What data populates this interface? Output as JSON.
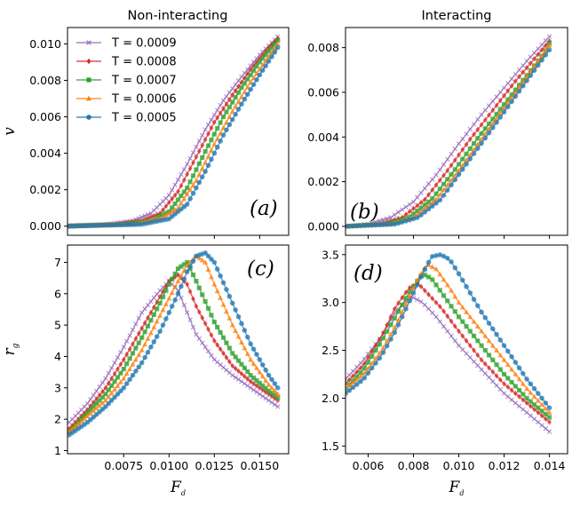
{
  "figure": {
    "shared_xlabel": "F",
    "shared_xlabel_sub": "d"
  },
  "legend": {
    "entries": [
      {
        "label": "T = 0.0009",
        "color": "#9467bd",
        "marker": "x"
      },
      {
        "label": "T = 0.0008",
        "color": "#d62728",
        "marker": "diamond"
      },
      {
        "label": "T = 0.0007",
        "color": "#2ca02c",
        "marker": "square"
      },
      {
        "label": "T = 0.0006",
        "color": "#ff7f0e",
        "marker": "triangle"
      },
      {
        "label": "T = 0.0005",
        "color": "#1f77b4",
        "marker": "circle"
      }
    ]
  },
  "chart_data": [
    {
      "id": "a",
      "type": "line",
      "title": "Non-interacting",
      "tag": "(a)",
      "ylabel": "v",
      "xlabel": "",
      "xlim": [
        0.0044,
        0.0166
      ],
      "ylim": [
        -0.0005,
        0.0109
      ],
      "xticks": [
        0.0075,
        0.01,
        0.0125,
        0.015
      ],
      "xtick_labels": [],
      "yticks": [
        0.0,
        0.002,
        0.004,
        0.006,
        0.008,
        0.01
      ],
      "ytick_labels": [
        "0.000",
        "0.002",
        "0.004",
        "0.006",
        "0.008",
        "0.010"
      ],
      "series": [
        {
          "name": "T = 0.0009",
          "x": [
            0.0045,
            0.0065,
            0.008,
            0.009,
            0.01,
            0.011,
            0.012,
            0.013,
            0.014,
            0.015,
            0.016
          ],
          "values": [
            5e-05,
            0.0001,
            0.0003,
            0.0007,
            0.0017,
            0.0034,
            0.0053,
            0.0069,
            0.0082,
            0.0094,
            0.0104
          ]
        },
        {
          "name": "T = 0.0008",
          "x": [
            0.0045,
            0.007,
            0.0085,
            0.0095,
            0.0105,
            0.0115,
            0.0125,
            0.0135,
            0.0145,
            0.0155,
            0.016
          ],
          "values": [
            0.0,
            0.0001,
            0.0003,
            0.0007,
            0.0019,
            0.0038,
            0.0057,
            0.0072,
            0.0086,
            0.0098,
            0.0103
          ]
        },
        {
          "name": "T = 0.0007",
          "x": [
            0.0045,
            0.0075,
            0.009,
            0.01,
            0.011,
            0.012,
            0.013,
            0.014,
            0.015,
            0.016
          ],
          "values": [
            0.0,
            0.0001,
            0.0003,
            0.0008,
            0.0021,
            0.0041,
            0.006,
            0.0076,
            0.009,
            0.0102
          ]
        },
        {
          "name": "T = 0.0006",
          "x": [
            0.0045,
            0.008,
            0.0095,
            0.0105,
            0.0115,
            0.0125,
            0.0135,
            0.0145,
            0.0155,
            0.016
          ],
          "values": [
            0.0,
            0.0001,
            0.0004,
            0.001,
            0.0025,
            0.0045,
            0.0063,
            0.0079,
            0.0093,
            0.01
          ]
        },
        {
          "name": "T = 0.0005",
          "x": [
            0.0045,
            0.0085,
            0.01,
            0.011,
            0.012,
            0.013,
            0.014,
            0.015,
            0.016
          ],
          "values": [
            0.0,
            0.0001,
            0.0004,
            0.0012,
            0.003,
            0.005,
            0.0067,
            0.0083,
            0.0098
          ]
        }
      ]
    },
    {
      "id": "b",
      "type": "line",
      "title": "Interacting",
      "tag": "(b)",
      "ylabel": "",
      "xlabel": "",
      "xlim": [
        0.005,
        0.0148
      ],
      "ylim": [
        -0.0004,
        0.0089
      ],
      "xticks": [
        0.006,
        0.008,
        0.01,
        0.012,
        0.014
      ],
      "xtick_labels": [],
      "yticks": [
        0.0,
        0.002,
        0.004,
        0.006,
        0.008
      ],
      "ytick_labels": [
        "0.000",
        "0.002",
        "0.004",
        "0.006",
        "0.008"
      ],
      "series": [
        {
          "name": "T = 0.0009",
          "x": [
            0.005,
            0.006,
            0.007,
            0.008,
            0.009,
            0.01,
            0.011,
            0.012,
            0.013,
            0.014
          ],
          "values": [
            0.0,
            0.0001,
            0.0004,
            0.0011,
            0.0023,
            0.0037,
            0.005,
            0.0062,
            0.0074,
            0.0085
          ]
        },
        {
          "name": "T = 0.0008",
          "x": [
            0.005,
            0.0065,
            0.0075,
            0.0085,
            0.0095,
            0.0105,
            0.0115,
            0.0125,
            0.0135,
            0.014
          ],
          "values": [
            0.0,
            0.0001,
            0.0004,
            0.0012,
            0.0025,
            0.0039,
            0.0052,
            0.0065,
            0.0077,
            0.0083
          ]
        },
        {
          "name": "T = 0.0007",
          "x": [
            0.005,
            0.0068,
            0.0078,
            0.0088,
            0.0098,
            0.0108,
            0.0118,
            0.0128,
            0.0138,
            0.014
          ],
          "values": [
            0.0,
            0.0001,
            0.0004,
            0.0012,
            0.0025,
            0.0039,
            0.0052,
            0.0065,
            0.0078,
            0.0082
          ]
        },
        {
          "name": "T = 0.0006",
          "x": [
            0.005,
            0.007,
            0.008,
            0.009,
            0.01,
            0.011,
            0.012,
            0.013,
            0.014
          ],
          "values": [
            0.0,
            0.0001,
            0.0004,
            0.0012,
            0.0025,
            0.0039,
            0.0053,
            0.0067,
            0.0081
          ]
        },
        {
          "name": "T = 0.0005",
          "x": [
            0.005,
            0.0072,
            0.0082,
            0.0092,
            0.0102,
            0.0112,
            0.0122,
            0.0132,
            0.014
          ],
          "values": [
            0.0,
            0.0001,
            0.0004,
            0.0012,
            0.0026,
            0.004,
            0.0054,
            0.0068,
            0.0079
          ]
        }
      ]
    },
    {
      "id": "c",
      "type": "line",
      "title": "",
      "tag": "(c)",
      "ylabel": "r",
      "ylabel_sub": "g",
      "xlabel": "F",
      "xlim": [
        0.0044,
        0.0166
      ],
      "ylim": [
        0.9,
        7.55
      ],
      "xticks": [
        0.0075,
        0.01,
        0.0125,
        0.015
      ],
      "xtick_labels": [
        "0.0075",
        "0.0100",
        "0.0125",
        "0.0150"
      ],
      "yticks": [
        1,
        2,
        3,
        4,
        5,
        6,
        7
      ],
      "ytick_labels": [
        "1",
        "2",
        "3",
        "4",
        "5",
        "6",
        "7"
      ],
      "series": [
        {
          "name": "T = 0.0009",
          "x": [
            0.0045,
            0.0055,
            0.0065,
            0.0075,
            0.0085,
            0.0095,
            0.01,
            0.0105,
            0.011,
            0.0115,
            0.0125,
            0.0135,
            0.0145,
            0.0155,
            0.016
          ],
          "values": [
            1.9,
            2.5,
            3.3,
            4.3,
            5.4,
            6.1,
            6.4,
            6.1,
            5.4,
            4.7,
            3.9,
            3.4,
            3.0,
            2.6,
            2.4
          ]
        },
        {
          "name": "T = 0.0008",
          "x": [
            0.0045,
            0.0055,
            0.0065,
            0.0075,
            0.0085,
            0.0095,
            0.01,
            0.0105,
            0.011,
            0.0115,
            0.0125,
            0.0135,
            0.0145,
            0.0155,
            0.016
          ],
          "values": [
            1.7,
            2.3,
            3.0,
            3.9,
            4.9,
            5.9,
            6.4,
            6.6,
            6.3,
            5.6,
            4.5,
            3.7,
            3.2,
            2.8,
            2.6
          ]
        },
        {
          "name": "T = 0.0007",
          "x": [
            0.0045,
            0.0055,
            0.0065,
            0.0075,
            0.0085,
            0.0095,
            0.01,
            0.0105,
            0.011,
            0.0115,
            0.0125,
            0.0135,
            0.0145,
            0.0155,
            0.016
          ],
          "values": [
            1.6,
            2.2,
            2.8,
            3.6,
            4.6,
            5.7,
            6.3,
            6.8,
            7.0,
            6.4,
            5.1,
            4.1,
            3.4,
            2.9,
            2.7
          ]
        },
        {
          "name": "T = 0.0006",
          "x": [
            0.0045,
            0.0055,
            0.0065,
            0.0075,
            0.0085,
            0.0095,
            0.0105,
            0.011,
            0.0115,
            0.012,
            0.0125,
            0.0135,
            0.0145,
            0.0155,
            0.016
          ],
          "values": [
            1.6,
            2.1,
            2.6,
            3.3,
            4.2,
            5.3,
            6.4,
            6.9,
            7.2,
            7.0,
            6.3,
            5.0,
            3.9,
            3.1,
            2.8
          ]
        },
        {
          "name": "T = 0.0005",
          "x": [
            0.0045,
            0.0055,
            0.0065,
            0.0075,
            0.0085,
            0.0095,
            0.0105,
            0.011,
            0.0115,
            0.012,
            0.0125,
            0.0135,
            0.0145,
            0.0155,
            0.016
          ],
          "values": [
            1.5,
            1.9,
            2.4,
            3.0,
            3.8,
            4.8,
            6.0,
            6.7,
            7.2,
            7.3,
            7.0,
            5.7,
            4.4,
            3.4,
            3.0
          ]
        }
      ]
    },
    {
      "id": "d",
      "type": "line",
      "title": "",
      "tag": "(d)",
      "ylabel": "",
      "xlabel": "F",
      "xlim": [
        0.005,
        0.0148
      ],
      "ylim": [
        1.42,
        3.6
      ],
      "xticks": [
        0.006,
        0.008,
        0.01,
        0.012,
        0.014
      ],
      "xtick_labels": [
        "0.006",
        "0.008",
        "0.010",
        "0.012",
        "0.014"
      ],
      "yticks": [
        1.5,
        2.0,
        2.5,
        3.0,
        3.5
      ],
      "ytick_labels": [
        "1.5",
        "2.0",
        "2.5",
        "3.0",
        "3.5"
      ],
      "series": [
        {
          "name": "T = 0.0009",
          "x": [
            0.005,
            0.0058,
            0.0066,
            0.0072,
            0.0078,
            0.008,
            0.0084,
            0.009,
            0.01,
            0.011,
            0.012,
            0.013,
            0.014
          ],
          "values": [
            2.2,
            2.4,
            2.65,
            2.9,
            3.05,
            3.05,
            3.0,
            2.85,
            2.55,
            2.3,
            2.05,
            1.85,
            1.65
          ]
        },
        {
          "name": "T = 0.0008",
          "x": [
            0.005,
            0.0058,
            0.0066,
            0.0072,
            0.0078,
            0.0082,
            0.0086,
            0.0092,
            0.01,
            0.011,
            0.012,
            0.013,
            0.014
          ],
          "values": [
            2.15,
            2.35,
            2.65,
            2.95,
            3.15,
            3.2,
            3.1,
            2.95,
            2.7,
            2.4,
            2.15,
            1.95,
            1.75
          ]
        },
        {
          "name": "T = 0.0007",
          "x": [
            0.005,
            0.0058,
            0.0066,
            0.0072,
            0.0078,
            0.0084,
            0.0088,
            0.0094,
            0.01,
            0.011,
            0.012,
            0.013,
            0.014
          ],
          "values": [
            2.1,
            2.3,
            2.6,
            2.85,
            3.1,
            3.3,
            3.25,
            3.05,
            2.85,
            2.55,
            2.25,
            2.0,
            1.8
          ]
        },
        {
          "name": "T = 0.0006",
          "x": [
            0.005,
            0.0058,
            0.0066,
            0.0072,
            0.0078,
            0.0082,
            0.0086,
            0.009,
            0.0096,
            0.01,
            0.011,
            0.012,
            0.013,
            0.014
          ],
          "values": [
            2.1,
            2.25,
            2.5,
            2.75,
            3.05,
            3.25,
            3.4,
            3.35,
            3.15,
            3.0,
            2.7,
            2.4,
            2.1,
            1.85
          ]
        },
        {
          "name": "T = 0.0005",
          "x": [
            0.005,
            0.0058,
            0.0066,
            0.0072,
            0.0078,
            0.0084,
            0.0088,
            0.0092,
            0.0096,
            0.01,
            0.011,
            0.012,
            0.013,
            0.014
          ],
          "values": [
            2.05,
            2.2,
            2.45,
            2.7,
            3.0,
            3.3,
            3.48,
            3.5,
            3.45,
            3.3,
            2.9,
            2.55,
            2.2,
            1.9
          ]
        }
      ]
    }
  ]
}
